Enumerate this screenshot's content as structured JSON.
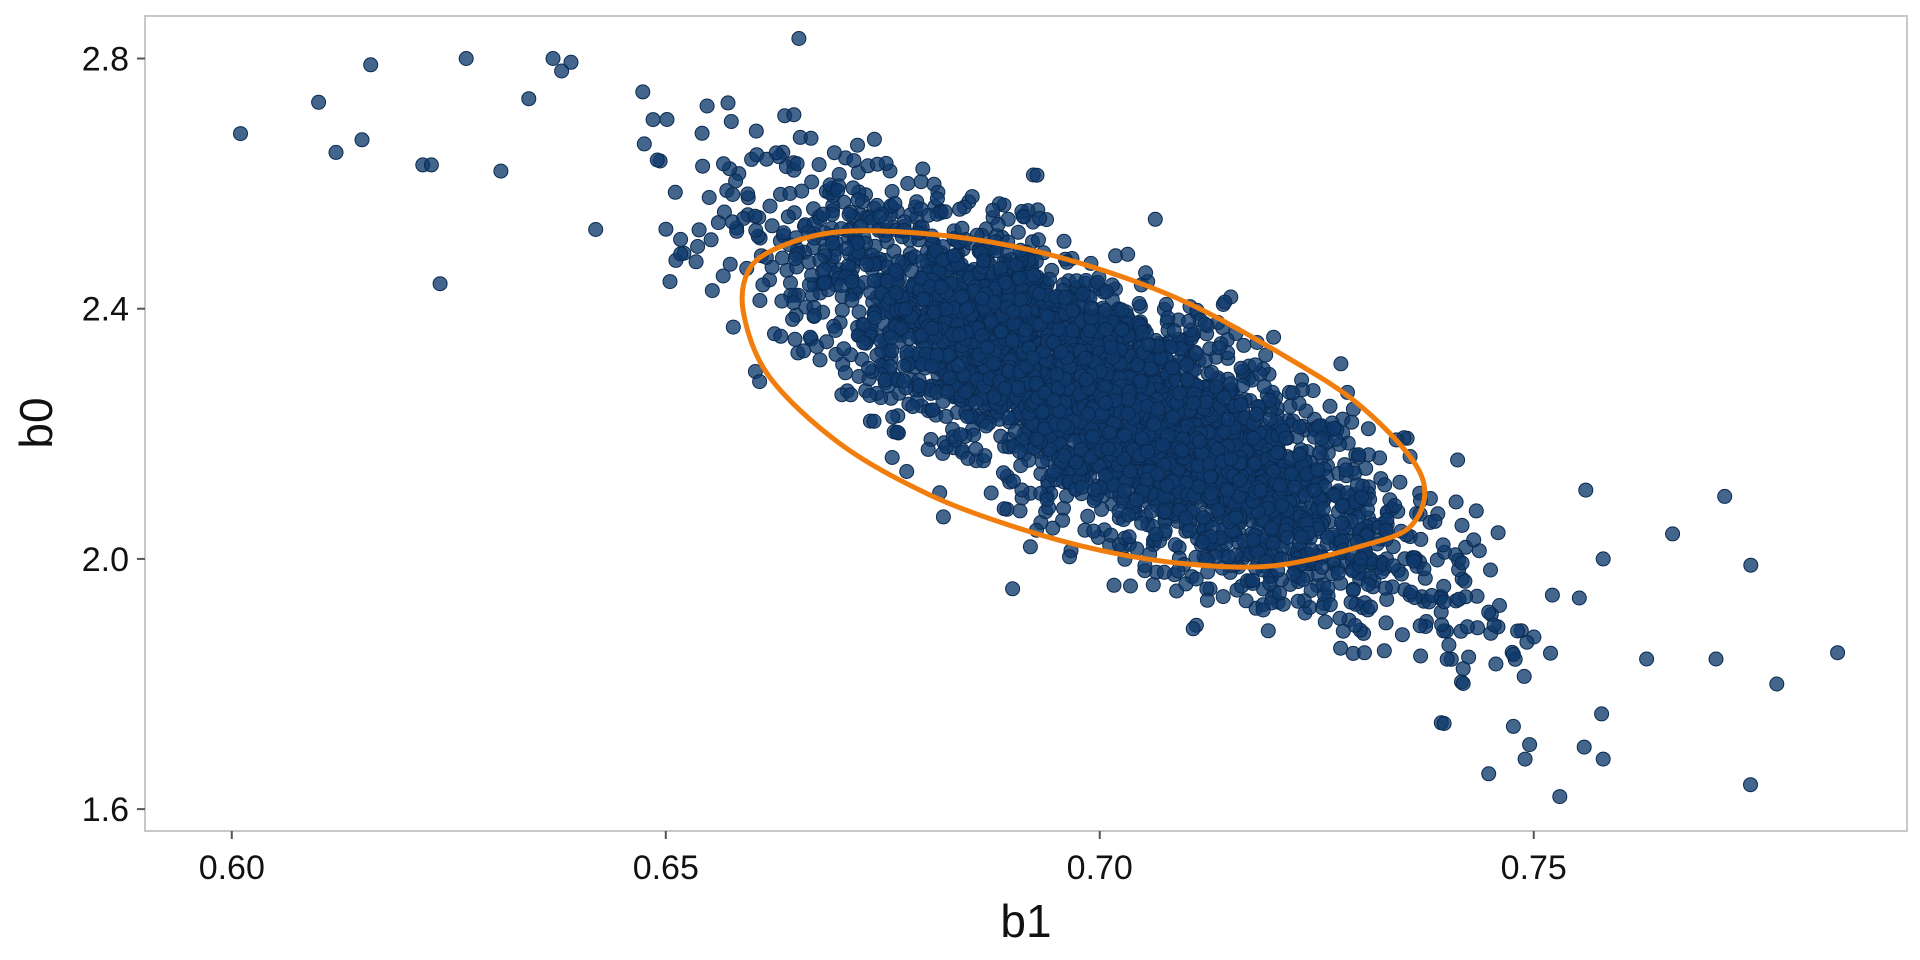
{
  "chart_data": {
    "type": "scatter",
    "title": "",
    "xlabel": "b1",
    "ylabel": "b0",
    "xlim": [
      0.59,
      0.793
    ],
    "ylim": [
      1.565,
      2.868
    ],
    "x_ticks": [
      0.6,
      0.65,
      0.7,
      0.75
    ],
    "x_tick_labels": [
      "0.60",
      "0.65",
      "0.70",
      "0.75"
    ],
    "y_ticks": [
      1.6,
      2.0,
      2.4,
      2.8
    ],
    "y_tick_labels": [
      "1.6",
      "2.0",
      "2.4",
      "2.8"
    ],
    "grid": false,
    "point_color": "#0f3a6b",
    "point_edge_color": "#0a2a50",
    "ellipse_color": "#f07d0c",
    "frame_color": "#c8c8c8",
    "points": {
      "n": 4000,
      "center": [
        0.7,
        2.255
      ],
      "sd_x": 0.0175,
      "sd_y": 0.155,
      "correlation": -0.8
    },
    "outliers": [
      [
        0.601,
        2.68
      ],
      [
        0.61,
        2.73
      ],
      [
        0.612,
        2.65
      ],
      [
        0.615,
        2.67
      ],
      [
        0.616,
        2.79
      ],
      [
        0.622,
        2.63
      ],
      [
        0.623,
        2.63
      ],
      [
        0.624,
        2.44
      ],
      [
        0.627,
        2.8
      ],
      [
        0.631,
        2.62
      ],
      [
        0.637,
        2.8
      ],
      [
        0.638,
        2.78
      ],
      [
        0.749,
        1.68
      ],
      [
        0.753,
        1.62
      ],
      [
        0.758,
        1.68
      ],
      [
        0.763,
        1.84
      ],
      [
        0.771,
        1.84
      ],
      [
        0.772,
        2.1
      ],
      [
        0.775,
        1.99
      ],
      [
        0.778,
        1.8
      ],
      [
        0.785,
        1.85
      ],
      [
        0.766,
        2.04
      ],
      [
        0.758,
        2.0
      ],
      [
        0.756,
        2.11
      ]
    ],
    "ellipse": {
      "center": [
        0.6995,
        2.258
      ],
      "points": [
        [
          0.6595,
          2.46
        ],
        [
          0.663,
          2.498
        ],
        [
          0.67,
          2.523
        ],
        [
          0.68,
          2.52
        ],
        [
          0.69,
          2.5
        ],
        [
          0.7,
          2.463
        ],
        [
          0.71,
          2.41
        ],
        [
          0.72,
          2.335
        ],
        [
          0.73,
          2.245
        ],
        [
          0.737,
          2.135
        ],
        [
          0.736,
          2.055
        ],
        [
          0.73,
          2.02
        ],
        [
          0.72,
          1.989
        ],
        [
          0.71,
          1.992
        ],
        [
          0.7,
          2.014
        ],
        [
          0.69,
          2.052
        ],
        [
          0.68,
          2.105
        ],
        [
          0.67,
          2.185
        ],
        [
          0.662,
          2.29
        ],
        [
          0.659,
          2.39
        ]
      ]
    }
  }
}
